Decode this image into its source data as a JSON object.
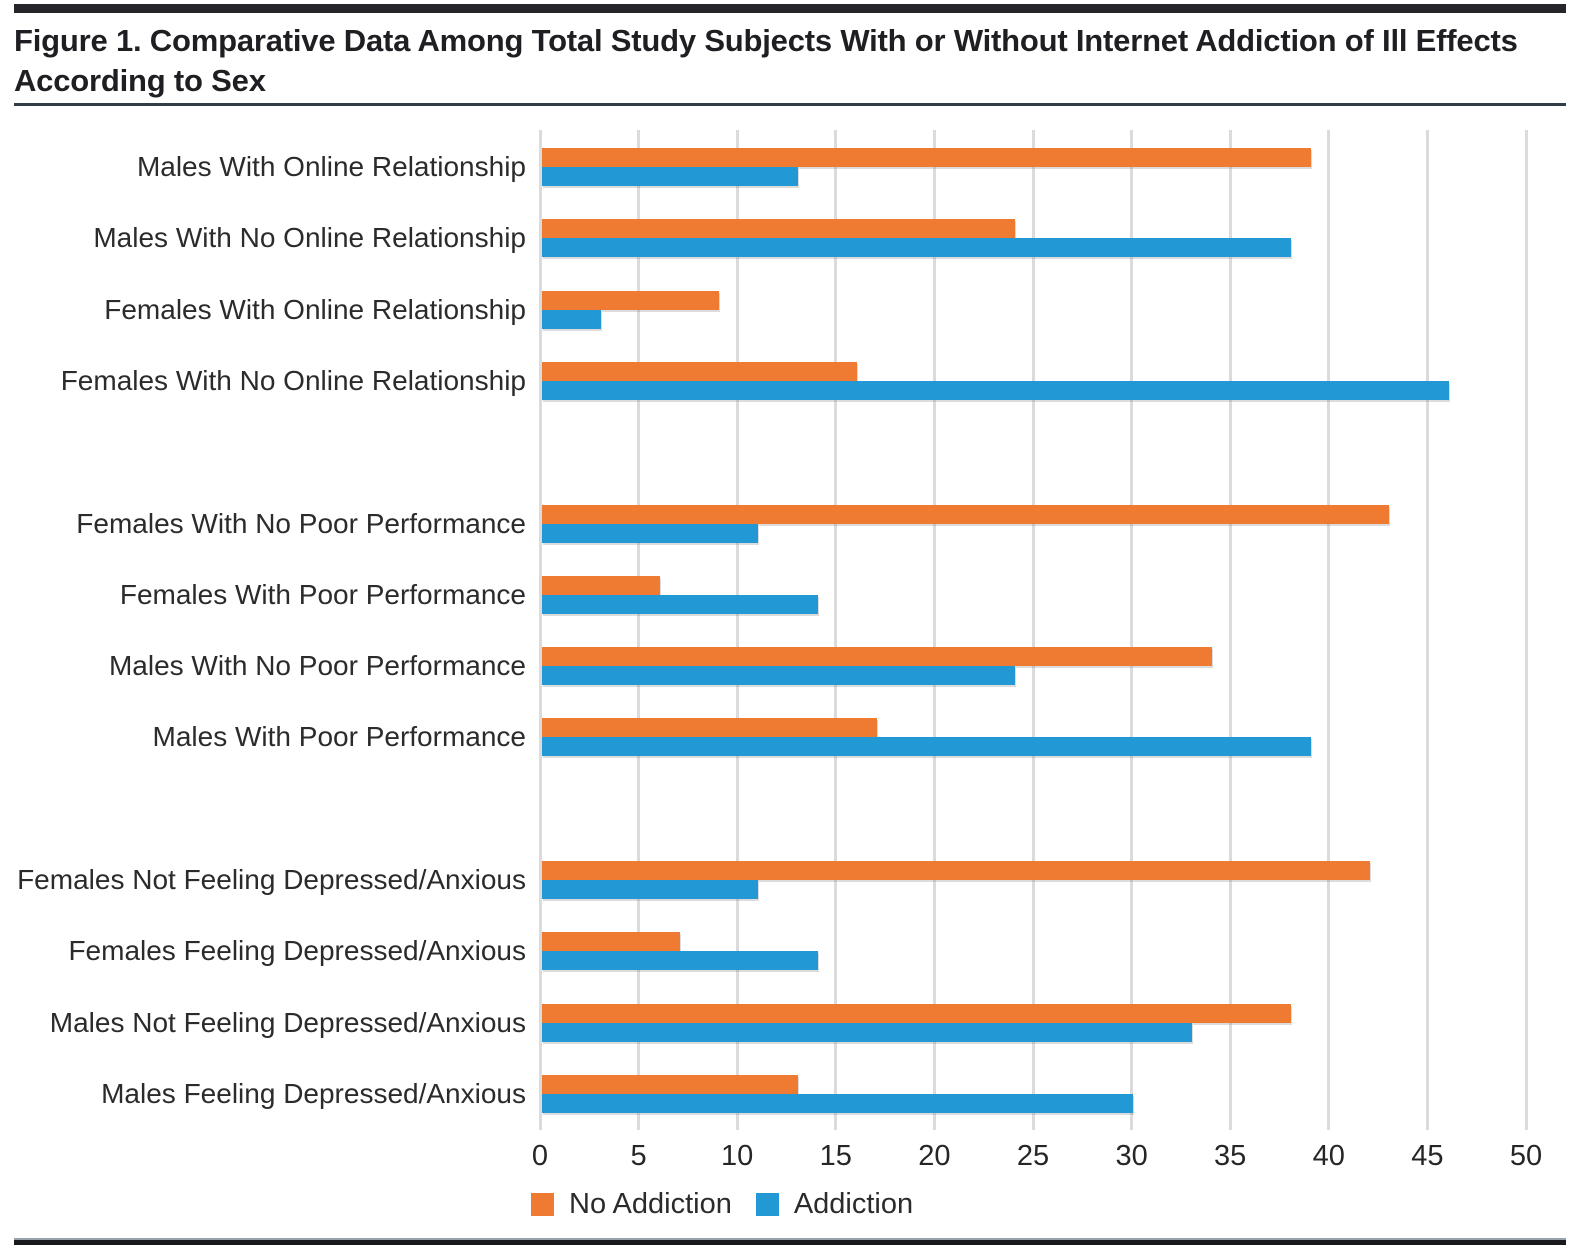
{
  "chart_data": {
    "type": "bar",
    "orientation": "horizontal",
    "title": "Figure 1. Comparative Data Among Total Study Subjects With or Without Internet Addiction of Ill Effects According to Sex",
    "categories": [
      "Males With Online Relationship",
      "Males With No Online Relationship",
      "Females With Online Relationship",
      "Females With No Online Relationship",
      "Females With No Poor Performance",
      "Females With Poor Performance",
      "Males With No Poor Performance",
      "Males With Poor Performance",
      "Females Not Feeling Depressed/Anxious",
      "Females Feeling Depressed/Anxious",
      "Males Not Feeling Depressed/Anxious",
      "Males Feeling Depressed/Anxious"
    ],
    "series": [
      {
        "name": "No Addiction",
        "color": "#EF7B33",
        "values": [
          39,
          24,
          9,
          16,
          43,
          6,
          34,
          17,
          42,
          7,
          38,
          13
        ]
      },
      {
        "name": "Addiction",
        "color": "#2299D4",
        "values": [
          13,
          38,
          3,
          46,
          11,
          14,
          24,
          39,
          11,
          14,
          33,
          30
        ]
      }
    ],
    "group_breaks_after": [
      3,
      7
    ],
    "xlim": [
      0,
      50
    ],
    "xticks": [
      0,
      5,
      10,
      15,
      20,
      25,
      30,
      35,
      40,
      45,
      50
    ],
    "grid": true,
    "gridline_color": "#dbdbdb",
    "legend_position": "bottom"
  }
}
